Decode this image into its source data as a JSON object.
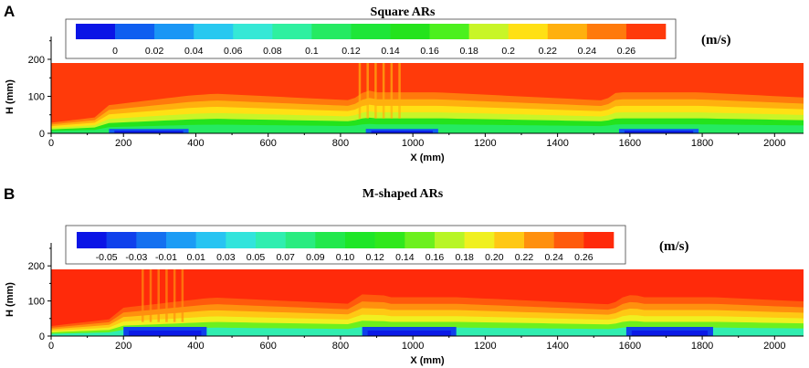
{
  "panels": [
    {
      "letter": "A",
      "title": "Square ARs",
      "unit": "(m/s)",
      "colorbar_labels": [
        "0",
        "0.02",
        "0.04",
        "0.06",
        "0.08",
        "0.1",
        "0.12",
        "0.14",
        "0.16",
        "0.18",
        "0.2",
        "0.22",
        "0.24",
        "0.26"
      ],
      "colorbar_colors": [
        "#0a14e6",
        "#0f5ef0",
        "#1a96f5",
        "#28c8f0",
        "#35e8d6",
        "#2ef0a0",
        "#25ea62",
        "#1ee638",
        "#24e31c",
        "#4cf01e",
        "#c8f528",
        "#ffe014",
        "#ffb00e",
        "#ff7a0c",
        "#ff3a0a"
      ],
      "xlabel": "X (mm)",
      "ylabel": "H (mm)",
      "xticks": [
        0,
        200,
        400,
        600,
        800,
        1000,
        1200,
        1400,
        1600,
        1800,
        2000
      ],
      "yticks": [
        0,
        100,
        200
      ],
      "obstacles_x": [
        [
          160,
          380
        ],
        [
          870,
          1070
        ],
        [
          1570,
          1790
        ]
      ],
      "flow_disturbance_x": [
        850,
        960
      ]
    },
    {
      "letter": "B",
      "title": "M-shaped ARs",
      "unit": "(m/s)",
      "colorbar_labels": [
        "-0.05",
        "-0.03",
        "-0.01",
        "0.01",
        "0.03",
        "0.05",
        "0.07",
        "0.09",
        "0.10",
        "0.12",
        "0.14",
        "0.16",
        "0.18",
        "0.20",
        "0.22",
        "0.24",
        "0.26"
      ],
      "colorbar_colors": [
        "#0a14e6",
        "#0f40ec",
        "#1470f0",
        "#1c9cf5",
        "#28c4f2",
        "#32e4dc",
        "#30eeb0",
        "#2aec80",
        "#22e84c",
        "#1ee628",
        "#30e81c",
        "#6cf01e",
        "#b8f526",
        "#f0f020",
        "#ffc814",
        "#ff900e",
        "#ff5a0c",
        "#ff2a0a"
      ],
      "xlabel": "X (mm)",
      "ylabel": "H (mm)",
      "xticks": [
        0,
        200,
        400,
        600,
        800,
        1000,
        1200,
        1400,
        1600,
        1800,
        2000
      ],
      "yticks": [
        0,
        100,
        200
      ],
      "obstacles_x": [
        [
          200,
          430
        ],
        [
          860,
          1120
        ],
        [
          1590,
          1830
        ]
      ],
      "flow_disturbance_x": [
        250,
        380
      ]
    }
  ],
  "chart_data": [
    {
      "type": "heatmap",
      "title": "Square ARs",
      "xlabel": "X (mm)",
      "ylabel": "H (mm)",
      "xlim": [
        0,
        2080
      ],
      "ylim": [
        0,
        190
      ],
      "colorbar_unit": "(m/s)",
      "colorbar_levels": [
        0,
        0.02,
        0.04,
        0.06,
        0.08,
        0.1,
        0.12,
        0.14,
        0.16,
        0.18,
        0.2,
        0.22,
        0.24,
        0.26
      ],
      "grid": false
    },
    {
      "type": "heatmap",
      "title": "M-shaped ARs",
      "xlabel": "X (mm)",
      "ylabel": "H (mm)",
      "xlim": [
        0,
        2080
      ],
      "ylim": [
        0,
        190
      ],
      "colorbar_unit": "(m/s)",
      "colorbar_levels": [
        -0.05,
        -0.03,
        -0.01,
        0.01,
        0.03,
        0.05,
        0.07,
        0.09,
        0.1,
        0.12,
        0.14,
        0.16,
        0.18,
        0.2,
        0.22,
        0.24,
        0.26
      ],
      "grid": false
    }
  ]
}
